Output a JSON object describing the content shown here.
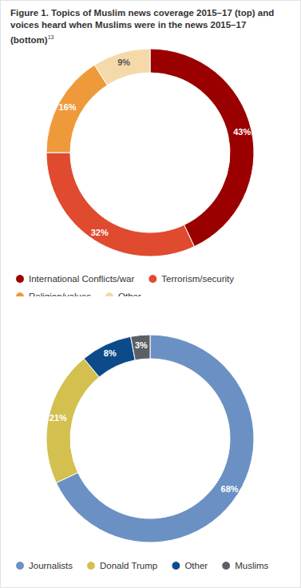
{
  "title": "Figure 1. Topics of Muslim news coverage 2015–17 (top) and voices heard when Muslims were in the news 2015–17 (bottom)",
  "title_note": "13",
  "chart_data": [
    {
      "type": "pie",
      "categories": [
        "International Conflicts/war",
        "Terrorism/security",
        "Religion/values",
        "Other"
      ],
      "values": [
        43,
        32,
        16,
        9
      ],
      "value_labels": [
        "43%",
        "32%",
        "16%",
        "9%"
      ],
      "colors": [
        "#9b0000",
        "#e04a2f",
        "#ee9a3a",
        "#f6d9a9"
      ],
      "data_labels": true,
      "legend": "bottom"
    },
    {
      "type": "pie",
      "categories": [
        "Journalists",
        "Donald Trump",
        "Other",
        "Muslims"
      ],
      "values": [
        68,
        21,
        8,
        3
      ],
      "value_labels": [
        "68%",
        "21%",
        "8%",
        "3%"
      ],
      "colors": [
        "#6b91c4",
        "#d3c04f",
        "#0d4a8a",
        "#5b5f66"
      ],
      "data_labels": true,
      "legend": "bottom"
    }
  ]
}
